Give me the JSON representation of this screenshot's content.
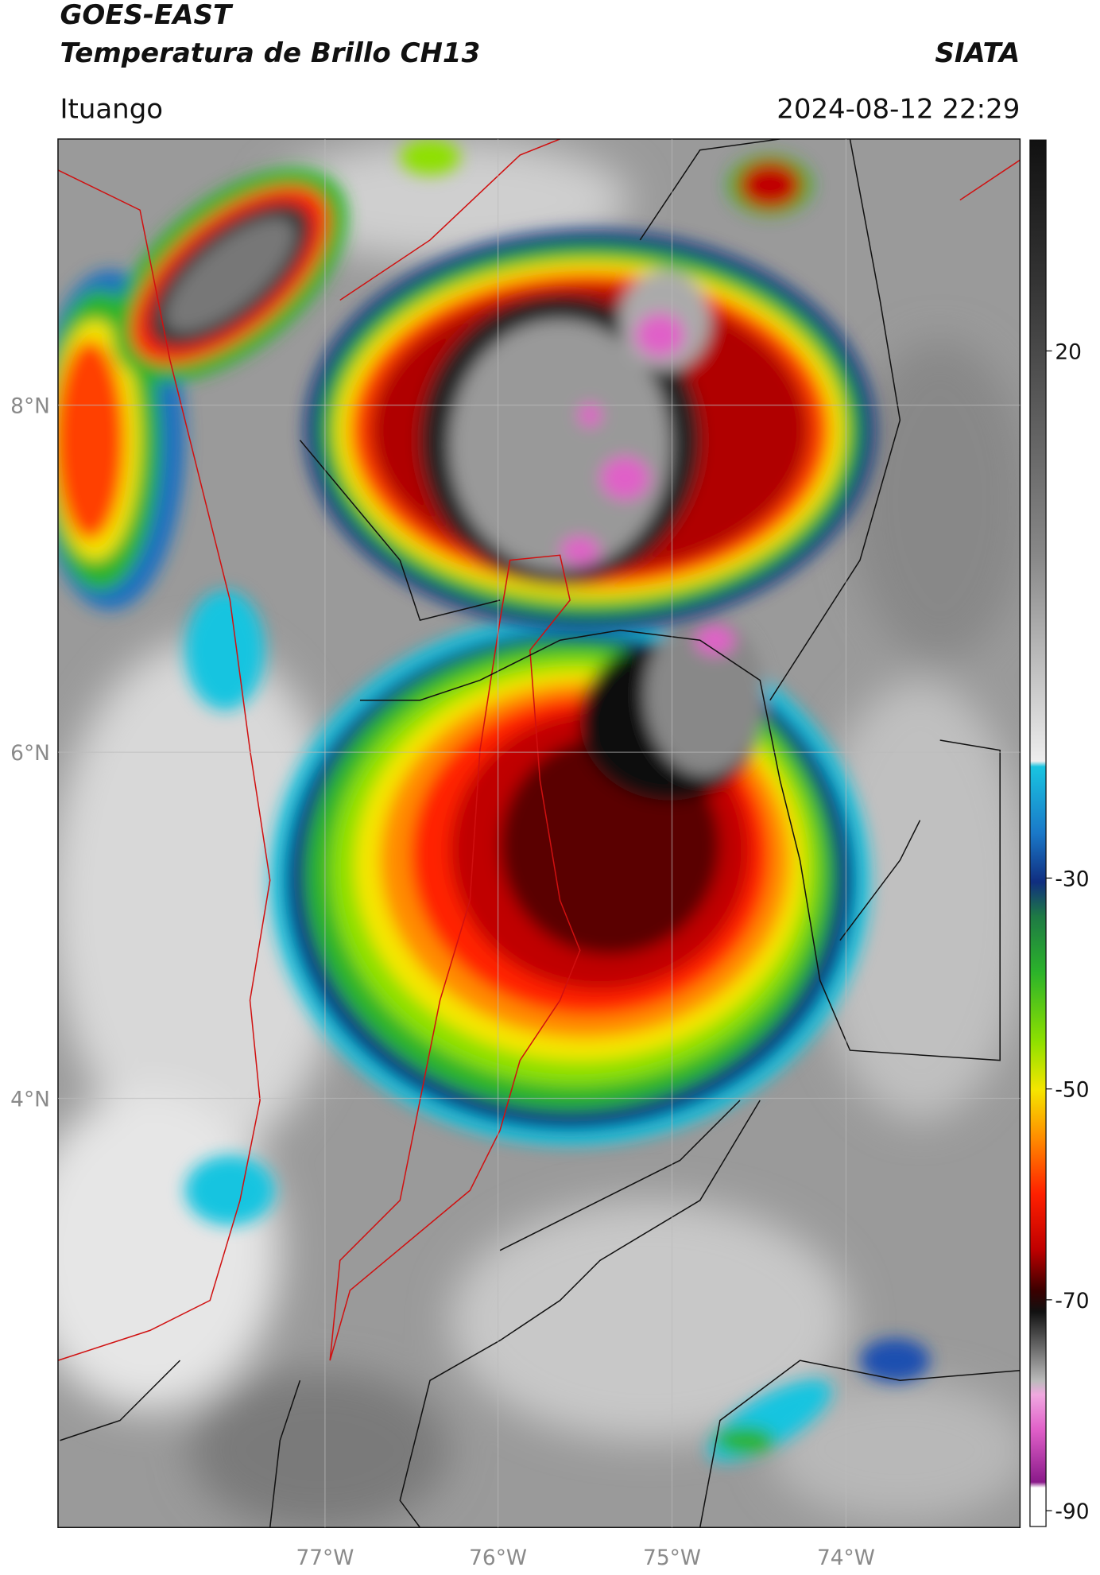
{
  "header": {
    "title": "GOES-EAST",
    "subtitle": "Temperatura de Brillo CH13",
    "source": "SIATA",
    "location": "Ituango",
    "datetime": "2024-08-12 22:29"
  },
  "map": {
    "lat_labels": [
      "8°N",
      "6°N",
      "4°N"
    ],
    "lon_labels": [
      "77°W",
      "76°W",
      "75°W",
      "74°W"
    ]
  },
  "colorbar": {
    "range": [
      -91.5,
      40
    ],
    "ticks": [
      20,
      -30,
      -50,
      -70,
      -90
    ]
  }
}
